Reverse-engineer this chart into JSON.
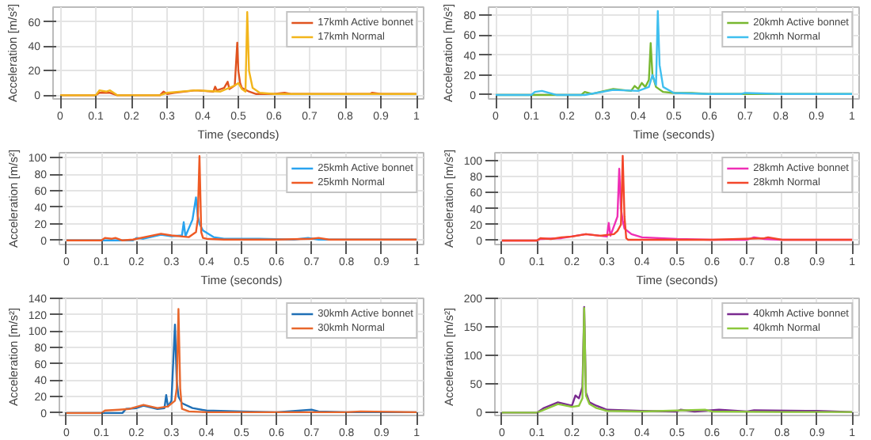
{
  "chart_data": [
    {
      "type": "line",
      "xlabel": "Time (seconds)",
      "ylabel": "Acceleration [m/s²]",
      "xlim": [
        -0.02,
        1.02
      ],
      "ylim": [
        -3,
        72
      ],
      "xticks": [
        0,
        0.1,
        0.2,
        0.3,
        0.4,
        0.5,
        0.6,
        0.7,
        0.8,
        0.9,
        1
      ],
      "yticks": [
        0,
        20,
        40,
        60
      ],
      "grid": true,
      "legend": "top right",
      "series": [
        {
          "name": "17kmh Active bonnet",
          "color": "#e0531f",
          "x": [
            0,
            0.1,
            0.11,
            0.14,
            0.16,
            0.28,
            0.29,
            0.3,
            0.32,
            0.38,
            0.43,
            0.435,
            0.44,
            0.46,
            0.47,
            0.475,
            0.49,
            0.497,
            0.5,
            0.505,
            0.51,
            0.53,
            0.55,
            0.6,
            0.63,
            0.65,
            0.7,
            0.87,
            0.875,
            0.9,
            1
          ],
          "values": [
            0,
            0,
            2,
            2,
            0,
            0,
            3,
            1,
            2,
            4,
            3,
            7,
            4,
            6,
            11,
            5,
            8,
            43,
            20,
            10,
            6,
            3,
            1,
            1,
            2,
            1,
            1,
            1,
            2,
            1,
            1
          ]
        },
        {
          "name": "17kmh Normal",
          "color": "#f2b51b",
          "x": [
            0,
            0.1,
            0.11,
            0.13,
            0.14,
            0.16,
            0.28,
            0.3,
            0.38,
            0.45,
            0.49,
            0.5,
            0.51,
            0.52,
            0.525,
            0.53,
            0.54,
            0.56,
            0.6,
            0.7,
            0.8,
            1
          ],
          "values": [
            0,
            0,
            4,
            3,
            4,
            0,
            0,
            2,
            4,
            3,
            8,
            10,
            5,
            3,
            68,
            20,
            6,
            2,
            1,
            1,
            1,
            1
          ]
        }
      ]
    },
    {
      "type": "line",
      "xlabel": "Time (seconds)",
      "ylabel": "Acceleration [m/s²]",
      "xlim": [
        -0.02,
        1.02
      ],
      "ylim": [
        -4,
        88
      ],
      "xticks": [
        0,
        0.1,
        0.2,
        0.3,
        0.4,
        0.5,
        0.6,
        0.7,
        0.8,
        0.9,
        1
      ],
      "yticks": [
        0,
        20,
        40,
        60,
        80
      ],
      "grid": true,
      "legend": "top right",
      "series": [
        {
          "name": "20kmh Active bonnet",
          "color": "#77b72f",
          "x": [
            0,
            0.24,
            0.25,
            0.27,
            0.33,
            0.38,
            0.39,
            0.4,
            0.41,
            0.42,
            0.43,
            0.435,
            0.44,
            0.45,
            0.47,
            0.5,
            0.55,
            0.6,
            0.7,
            0.9,
            1
          ],
          "values": [
            0,
            0,
            3,
            1,
            6,
            4,
            9,
            6,
            12,
            8,
            15,
            52,
            20,
            8,
            3,
            2,
            2,
            1,
            1,
            1,
            1
          ]
        },
        {
          "name": "20kmh Normal",
          "color": "#3fbfef",
          "x": [
            0,
            0.1,
            0.11,
            0.13,
            0.14,
            0.17,
            0.25,
            0.33,
            0.4,
            0.43,
            0.44,
            0.45,
            0.455,
            0.46,
            0.47,
            0.5,
            0.6,
            0.69,
            0.7,
            0.8,
            0.96,
            1
          ],
          "values": [
            0,
            0,
            3,
            4,
            3,
            0,
            0,
            5,
            4,
            8,
            20,
            10,
            84,
            30,
            8,
            2,
            1,
            1,
            2,
            1,
            1,
            1
          ]
        }
      ]
    },
    {
      "type": "line",
      "xlabel": "Time (seconds)",
      "ylabel": "Acceleration [m/s²]",
      "xlim": [
        -0.02,
        1.02
      ],
      "ylim": [
        -5,
        106
      ],
      "xticks": [
        0,
        0.1,
        0.2,
        0.3,
        0.4,
        0.5,
        0.6,
        0.7,
        0.8,
        0.9,
        1
      ],
      "yticks": [
        0,
        20,
        40,
        60,
        80,
        100
      ],
      "grid": true,
      "legend": "top right",
      "series": [
        {
          "name": "25kmh Active bonnet",
          "color": "#29a3ef",
          "x": [
            0,
            0.19,
            0.2,
            0.22,
            0.27,
            0.3,
            0.33,
            0.335,
            0.34,
            0.36,
            0.37,
            0.375,
            0.38,
            0.39,
            0.42,
            0.45,
            0.55,
            0.65,
            0.69,
            0.72,
            0.8,
            1
          ],
          "values": [
            0,
            0,
            3,
            2,
            7,
            5,
            6,
            22,
            5,
            25,
            52,
            30,
            20,
            12,
            4,
            2,
            2,
            1,
            3,
            1,
            1,
            1
          ]
        },
        {
          "name": "25kmh Normal",
          "color": "#ef5a24",
          "x": [
            0,
            0.1,
            0.11,
            0.13,
            0.14,
            0.16,
            0.19,
            0.27,
            0.3,
            0.35,
            0.37,
            0.375,
            0.38,
            0.385,
            0.39,
            0.4,
            0.45,
            0.6,
            0.7,
            0.72,
            0.75,
            1
          ],
          "values": [
            0,
            0,
            3,
            2,
            3,
            0,
            1,
            8,
            6,
            4,
            10,
            25,
            102,
            10,
            3,
            2,
            1,
            1,
            2,
            3,
            1,
            1
          ]
        }
      ]
    },
    {
      "type": "line",
      "xlabel": "Time (seconds)",
      "ylabel": "Acceleration [m/s²]",
      "xlim": [
        -0.02,
        1.02
      ],
      "ylim": [
        -5,
        110
      ],
      "xticks": [
        0,
        0.1,
        0.2,
        0.3,
        0.4,
        0.5,
        0.6,
        0.7,
        0.8,
        0.9,
        1
      ],
      "yticks": [
        0,
        20,
        40,
        60,
        80,
        100
      ],
      "grid": true,
      "legend": "top right",
      "series": [
        {
          "name": "28kmh Active bonnet",
          "color": "#ef2eb5",
          "x": [
            0,
            0.1,
            0.11,
            0.17,
            0.24,
            0.3,
            0.305,
            0.31,
            0.33,
            0.335,
            0.34,
            0.345,
            0.35,
            0.37,
            0.4,
            0.5,
            0.6,
            0.7,
            0.72,
            0.75,
            0.8,
            1
          ],
          "values": [
            0,
            0,
            2,
            3,
            8,
            5,
            22,
            6,
            30,
            90,
            40,
            25,
            15,
            8,
            4,
            2,
            1,
            1,
            4,
            2,
            1,
            1
          ]
        },
        {
          "name": "28kmh Normal",
          "color": "#f3462a",
          "x": [
            0,
            0.1,
            0.11,
            0.14,
            0.17,
            0.2,
            0.24,
            0.28,
            0.32,
            0.33,
            0.34,
            0.345,
            0.35,
            0.355,
            0.36,
            0.4,
            0.6,
            0.75,
            0.76,
            0.8,
            1
          ],
          "values": [
            0,
            0,
            3,
            2,
            4,
            5,
            8,
            6,
            8,
            12,
            20,
            106,
            30,
            3,
            1,
            1,
            1,
            3,
            4,
            1,
            1
          ]
        }
      ]
    },
    {
      "type": "line",
      "ylabel": "Acceleration [m/s²]",
      "xlim": [
        -0.02,
        1.02
      ],
      "ylim": [
        -3,
        140
      ],
      "xticks": [
        0,
        0.1,
        0.2,
        0.3,
        0.4,
        0.5,
        0.6,
        0.7,
        0.8,
        0.9,
        1
      ],
      "yticks": [
        0,
        20,
        40,
        60,
        80,
        100,
        120,
        140
      ],
      "grid": true,
      "legend": "top right",
      "series": [
        {
          "name": "30kmh Active bonnet",
          "color": "#1f6fb5",
          "x": [
            0,
            0.16,
            0.17,
            0.2,
            0.22,
            0.26,
            0.28,
            0.285,
            0.29,
            0.3,
            0.31,
            0.315,
            0.32,
            0.33,
            0.36,
            0.4,
            0.5,
            0.6,
            0.7,
            0.72,
            0.8,
            1
          ],
          "values": [
            0,
            0,
            5,
            6,
            9,
            5,
            6,
            22,
            8,
            15,
            108,
            40,
            20,
            12,
            6,
            3,
            2,
            1,
            4,
            2,
            1,
            1
          ]
        },
        {
          "name": "30kmh Normal",
          "color": "#e8672c",
          "x": [
            0,
            0.1,
            0.11,
            0.15,
            0.18,
            0.22,
            0.26,
            0.29,
            0.31,
            0.315,
            0.32,
            0.325,
            0.33,
            0.35,
            0.4,
            0.6,
            0.8,
            0.84,
            1
          ],
          "values": [
            0,
            0,
            3,
            4,
            5,
            10,
            6,
            8,
            15,
            30,
            127,
            30,
            5,
            2,
            1,
            1,
            1,
            2,
            1
          ]
        }
      ]
    },
    {
      "type": "line",
      "ylabel": "Acceleration [m/s²]",
      "xlim": [
        -0.02,
        1.02
      ],
      "ylim": [
        -5,
        200
      ],
      "xticks": [
        0,
        0.1,
        0.2,
        0.3,
        0.4,
        0.5,
        0.6,
        0.7,
        0.8,
        0.9,
        1
      ],
      "yticks": [
        0,
        50,
        100,
        150,
        200
      ],
      "grid": true,
      "legend": "top right",
      "series": [
        {
          "name": "40kmh Active bonnet",
          "color": "#7a2a90",
          "x": [
            0,
            0.1,
            0.12,
            0.16,
            0.2,
            0.21,
            0.22,
            0.23,
            0.235,
            0.24,
            0.25,
            0.27,
            0.3,
            0.4,
            0.5,
            0.51,
            0.55,
            0.62,
            0.7,
            0.72,
            0.9,
            1
          ],
          "values": [
            0,
            0,
            8,
            18,
            12,
            30,
            25,
            45,
            185,
            35,
            18,
            12,
            5,
            3,
            2,
            5,
            2,
            5,
            2,
            4,
            3,
            1
          ]
        },
        {
          "name": "40kmh Normal",
          "color": "#8cc83c",
          "x": [
            0,
            0.1,
            0.12,
            0.16,
            0.2,
            0.22,
            0.23,
            0.235,
            0.24,
            0.25,
            0.27,
            0.3,
            0.4,
            0.58,
            0.6,
            0.8,
            1
          ],
          "values": [
            0,
            0,
            5,
            15,
            10,
            12,
            25,
            183,
            30,
            15,
            8,
            3,
            2,
            5,
            2,
            1,
            1
          ]
        }
      ]
    }
  ]
}
